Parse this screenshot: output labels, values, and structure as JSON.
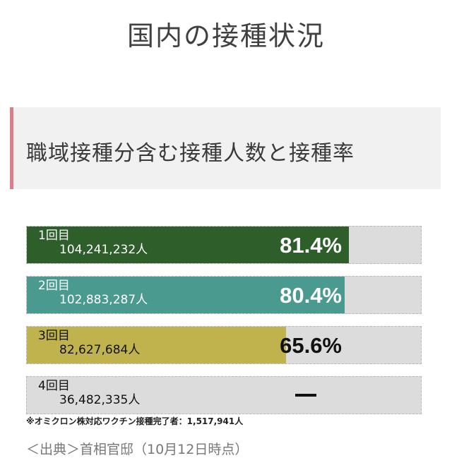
{
  "page": {
    "title": "国内の接種状況"
  },
  "section": {
    "heading": "職域接種分含む接種人数と接種率"
  },
  "chart_data": {
    "type": "bar",
    "orientation": "horizontal",
    "xlim": [
      0,
      100
    ],
    "categories": [
      "1回目",
      "2回目",
      "3回目",
      "4回目"
    ],
    "values": [
      81.4,
      80.4,
      65.6,
      null
    ],
    "counts": [
      "104,241,232人",
      "102,883,287人",
      "82,627,684人",
      "36,482,335人"
    ],
    "percent_labels": [
      "81.4%",
      "80.4%",
      "65.6%",
      "—"
    ],
    "colors": [
      "#2e5e2a",
      "#4a9a90",
      "#c0b24c",
      "#dcdcdc"
    ],
    "text_colors": [
      "light",
      "light",
      "dark",
      "dark"
    ]
  },
  "note": "※オミクロン株対応ワクチン接種完了者：1,517,941人",
  "source": "＜出典＞首相官邸（10月12日時点）"
}
